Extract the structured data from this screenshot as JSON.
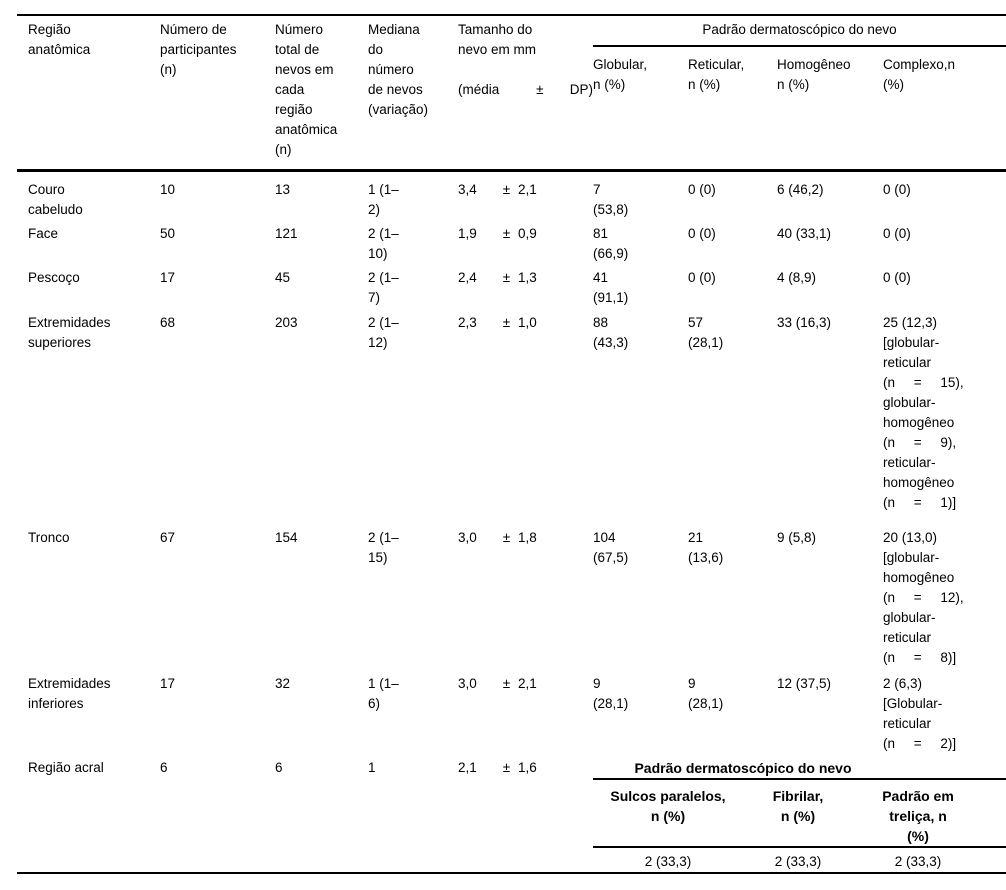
{
  "header": {
    "region": "Região\nanatômica",
    "participants": "Número de\nparticipantes\n(n)",
    "total_nevi": "Número\ntotal de\nnevos em\ncada\nregião\nanatômica\n(n)",
    "median": "Mediana\ndo\nnúmero\nde nevos\n(variação)",
    "size_lines": "Tamanho do\nnevo em mm",
    "size_mean": "(média",
    "size_pm": "±",
    "size_sd": "DP)",
    "pattern_group": "Padrão dermatoscópico do nevo",
    "globular": "Globular,\nn (%)",
    "reticular": "Reticular,\nn (%)",
    "homogeneous": "Homogêneo\nn (%)",
    "complex": "Complexo,n\n(%)"
  },
  "rows": [
    {
      "region": "Couro\ncabeludo",
      "participants": "10",
      "total": "13",
      "median": "1 (1–\n2)",
      "size": {
        "mean": "3,4",
        "pm": "±",
        "sd": "2,1"
      },
      "globular": "7\n(53,8)",
      "reticular": "0 (0)",
      "homogeneous": "6 (46,2)",
      "complex": "0 (0)"
    },
    {
      "region": "Face",
      "participants": "50",
      "total": "121",
      "median": "2 (1–\n10)",
      "size": {
        "mean": "1,9",
        "pm": "±",
        "sd": "0,9"
      },
      "globular": "81\n(66,9)",
      "reticular": "0 (0)",
      "homogeneous": "40 (33,1)",
      "complex": "0 (0)"
    },
    {
      "region": "Pescoço",
      "participants": "17",
      "total": "45",
      "median": "2 (1–\n7)",
      "size": {
        "mean": "2,4",
        "pm": "±",
        "sd": "1,3"
      },
      "globular": "41\n(91,1)",
      "reticular": "0 (0)",
      "homogeneous": "4 (8,9)",
      "complex": "0 (0)"
    },
    {
      "region": "Extremidades\nsuperiores",
      "participants": "68",
      "total": "203",
      "median": "2 (1–\n12)",
      "size": {
        "mean": "2,3",
        "pm": "±",
        "sd": "1,0"
      },
      "globular": "88\n(43,3)",
      "reticular": "57\n(28,1)",
      "homogeneous": "33 (16,3)",
      "complex": "25 (12,3)\n[globular-\nreticular\n(n     =     15),\nglobular-\nhomogêneo\n(n     =     9),\nreticular-\nhomogêneo\n(n     =     1)]"
    },
    {
      "region": "Tronco",
      "participants": "67",
      "total": "154",
      "median": "2 (1–\n15)",
      "size": {
        "mean": "3,0",
        "pm": "±",
        "sd": "1,8"
      },
      "globular": "104\n(67,5)",
      "reticular": "21\n(13,6)",
      "homogeneous": "9 (5,8)",
      "complex": "20 (13,0)\n[globular-\nhomogêneo\n(n     =     12),\nglobular-\nreticular\n(n     =     8)]"
    },
    {
      "region": "Extremidades\ninferiores",
      "participants": "17",
      "total": "32",
      "median": "1 (1–\n6)",
      "size": {
        "mean": "3,0",
        "pm": "±",
        "sd": "2,1"
      },
      "globular": "9\n(28,1)",
      "reticular": "9\n(28,1)",
      "homogeneous": "12 (37,5)",
      "complex": "2 (6,3)\n[Globular-\nreticular\n(n     =     2)]"
    }
  ],
  "acral": {
    "region": "Região acral",
    "participants": "6",
    "total": "6",
    "median": "1",
    "size": {
      "mean": "2,1",
      "pm": "±",
      "sd": "1,6"
    },
    "subtable": {
      "title": "Padrão dermatoscópico do nevo",
      "col_parallel": "Sulcos paralelos,\nn (%)",
      "col_fibrillar": "Fibrilar,\nn (%)",
      "col_lattice": "Padrão em\ntreliça, n\n(%)",
      "val_parallel": "2 (33,3)",
      "val_fibrillar": "2 (33,3)",
      "val_lattice": "2 (33,3)"
    }
  }
}
